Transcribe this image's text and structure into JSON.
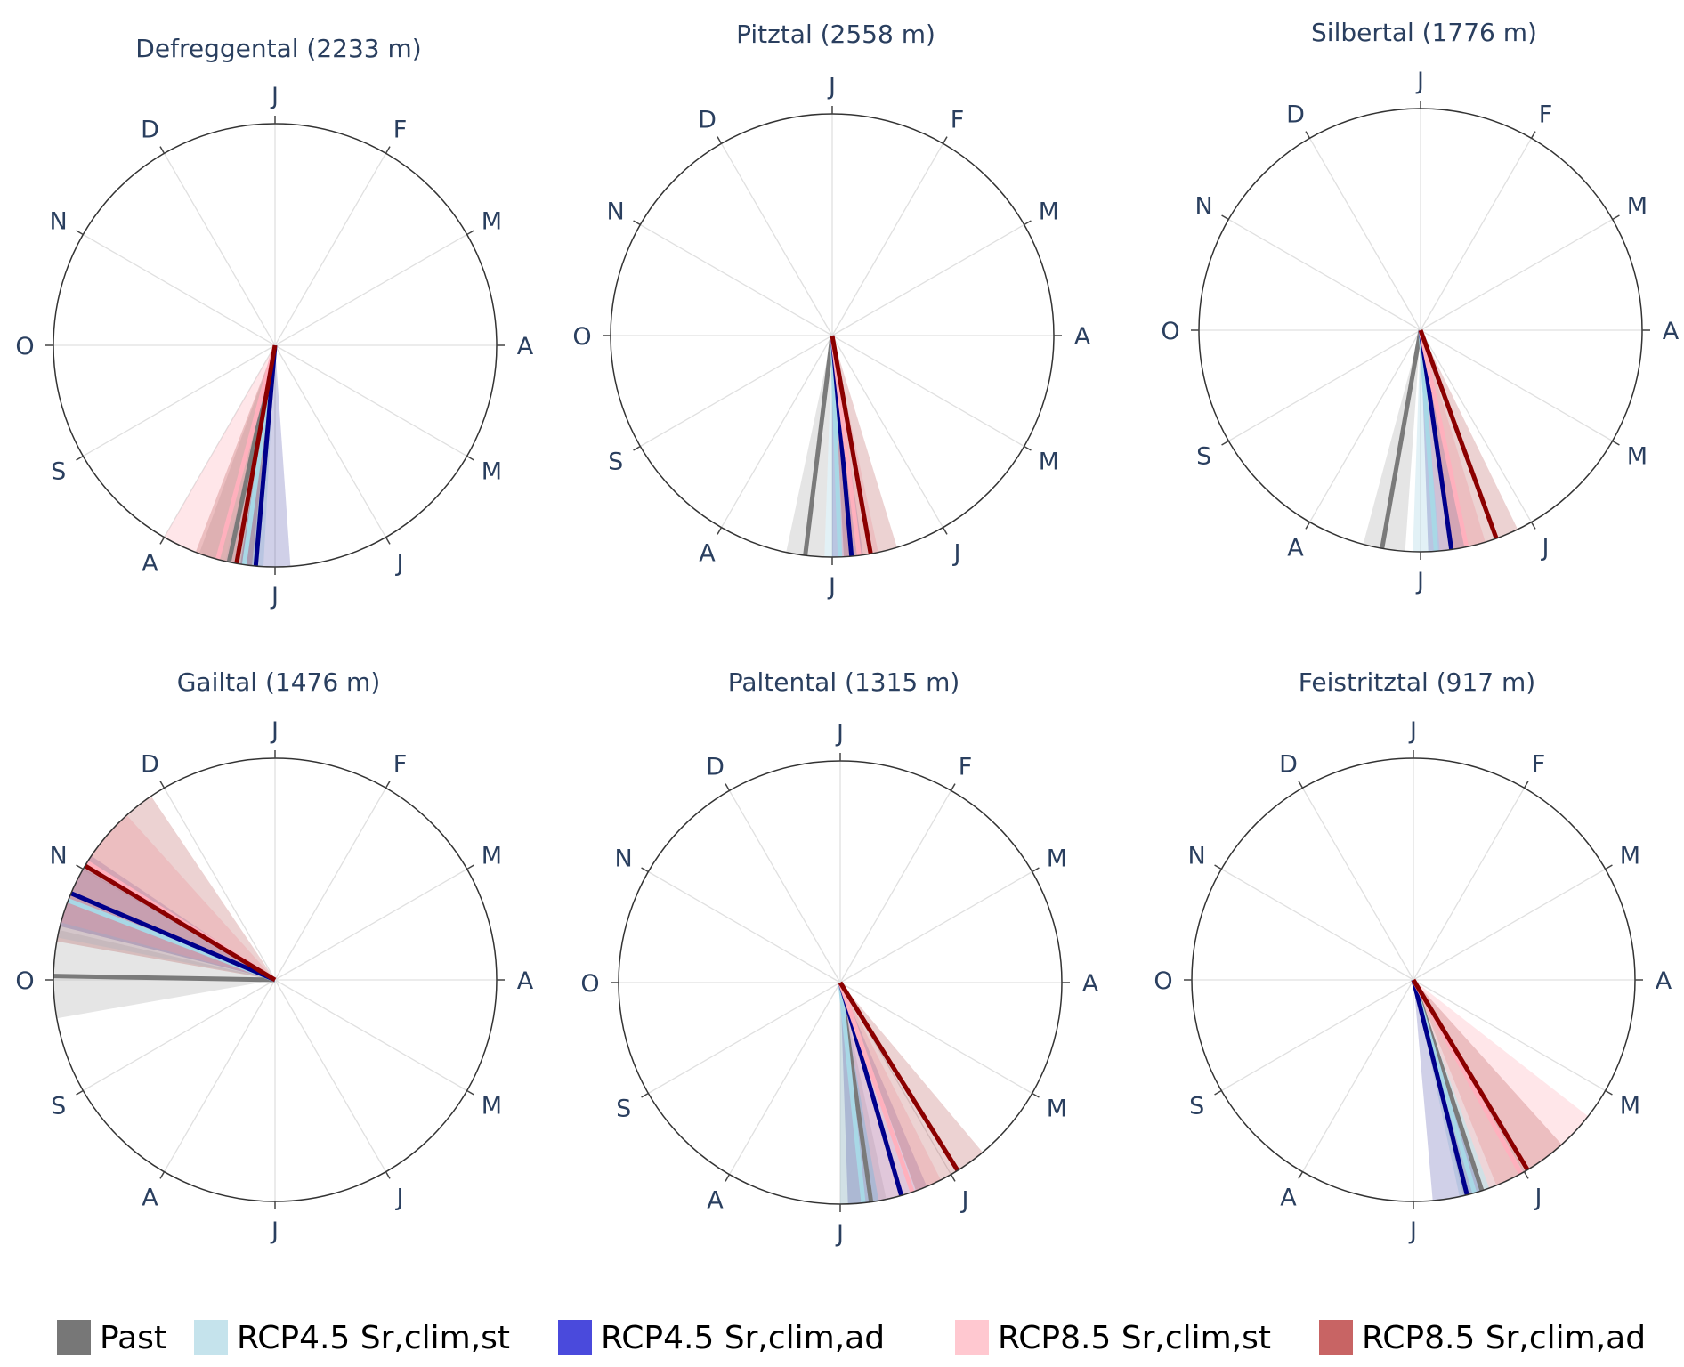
{
  "chart_data": [
    {
      "type": "polar",
      "title": "Defreggental (2233 m)",
      "series": [
        {
          "name": "Past",
          "angle": 192,
          "band": [
            185,
            200
          ]
        },
        {
          "name": "RCP4.5 Sr,clim,st",
          "angle": 188,
          "band": [
            183,
            193
          ]
        },
        {
          "name": "RCP4.5 Sr,clim,ad",
          "angle": 185,
          "band": [
            176,
            189
          ]
        },
        {
          "name": "RCP8.5 Sr,clim,st",
          "angle": 195,
          "band": [
            190,
            210
          ]
        },
        {
          "name": "RCP8.5 Sr,clim,ad",
          "angle": 190,
          "band": [
            186,
            201
          ]
        }
      ]
    },
    {
      "type": "polar",
      "title": "Pitztal (2558 m)",
      "series": [
        {
          "name": "Past",
          "angle": 187,
          "band": [
            182,
            192
          ]
        },
        {
          "name": "RCP4.5 Sr,clim,st",
          "angle": 178,
          "band": [
            175,
            182
          ]
        },
        {
          "name": "RCP4.5 Sr,clim,ad",
          "angle": 175,
          "band": [
            172,
            180
          ]
        },
        {
          "name": "RCP8.5 Sr,clim,st",
          "angle": 173,
          "band": [
            168,
            178
          ]
        },
        {
          "name": "RCP8.5 Sr,clim,ad",
          "angle": 170,
          "band": [
            163,
            177
          ]
        }
      ]
    },
    {
      "type": "polar",
      "title": "Silbertal (1776 m)",
      "series": [
        {
          "name": "Past",
          "angle": 190,
          "band": [
            184,
            195
          ]
        },
        {
          "name": "RCP4.5 Sr,clim,st",
          "angle": 176,
          "band": [
            172,
            182
          ]
        },
        {
          "name": "RCP4.5 Sr,clim,ad",
          "angle": 172,
          "band": [
            168,
            178
          ]
        },
        {
          "name": "RCP8.5 Sr,clim,st",
          "angle": 168,
          "band": [
            163,
            175
          ]
        },
        {
          "name": "RCP8.5 Sr,clim,ad",
          "angle": 160,
          "band": [
            154,
            172
          ]
        }
      ]
    },
    {
      "type": "polar",
      "title": "Gailtal (1476 m)",
      "series": [
        {
          "name": "Past",
          "angle": 271,
          "band": [
            260,
            283
          ]
        },
        {
          "name": "RCP4.5 Sr,clim,st",
          "angle": 291,
          "band": [
            281,
            300
          ]
        },
        {
          "name": "RCP4.5 Sr,clim,ad",
          "angle": 293,
          "band": [
            284,
            304
          ]
        },
        {
          "name": "RCP8.5 Sr,clim,st",
          "angle": 302,
          "band": [
            285,
            318
          ]
        },
        {
          "name": "RCP8.5 Sr,clim,ad",
          "angle": 301,
          "band": [
            280,
            326
          ]
        }
      ]
    },
    {
      "type": "polar",
      "title": "Paltental (1315 m)",
      "series": [
        {
          "name": "Past",
          "angle": 172,
          "band": [
            168,
            180
          ]
        },
        {
          "name": "RCP4.5 Sr,clim,st",
          "angle": 174,
          "band": [
            170,
            180
          ]
        },
        {
          "name": "RCP4.5 Sr,clim,ad",
          "angle": 164,
          "band": [
            157,
            178
          ]
        },
        {
          "name": "RCP8.5 Sr,clim,st",
          "angle": 161,
          "band": [
            153,
            170
          ]
        },
        {
          "name": "RCP8.5 Sr,clim,ad",
          "angle": 148,
          "band": [
            140,
            160
          ]
        }
      ]
    },
    {
      "type": "polar",
      "title": "Feistritztal (917 m)",
      "series": [
        {
          "name": "Past",
          "angle": 162,
          "band": [
            158,
            167
          ]
        },
        {
          "name": "RCP4.5 Sr,clim,st",
          "angle": 164,
          "band": [
            160,
            168
          ]
        },
        {
          "name": "RCP4.5 Sr,clim,ad",
          "angle": 166,
          "band": [
            162,
            175
          ]
        },
        {
          "name": "RCP8.5 Sr,clim,st",
          "angle": 151,
          "band": [
            128,
            160
          ]
        },
        {
          "name": "RCP8.5 Sr,clim,ad",
          "angle": 149,
          "band": [
            138,
            158
          ]
        }
      ]
    }
  ],
  "angular_axis": {
    "unit": "degrees clockwise from January",
    "tick_labels": [
      "J",
      "F",
      "M",
      "A",
      "M",
      "J",
      "J",
      "A",
      "S",
      "O",
      "N",
      "D"
    ]
  },
  "legend": [
    {
      "label": "Past",
      "color": "#777777"
    },
    {
      "label": "RCP4.5 Sr,clim,st",
      "color": "#c5e3ec"
    },
    {
      "label": "RCP4.5 Sr,clim,ad",
      "color": "#4a4adc"
    },
    {
      "label": "RCP8.5 Sr,clim,st",
      "color": "#ffc8d0"
    },
    {
      "label": "RCP8.5 Sr,clim,ad",
      "color": "#c86464"
    }
  ],
  "styles": {
    "line_colors": [
      "#7a7a7a",
      "#a8d8e6",
      "#00008b",
      "#ffb0bd",
      "#8b0000"
    ],
    "band_colors": [
      "rgba(190,190,190,0.4)",
      "rgba(173,216,230,0.35)",
      "rgba(40,40,150,0.22)",
      "rgba(255,182,193,0.35)",
      "rgba(160,30,30,0.2)"
    ],
    "text_color": "#2a3f5f"
  }
}
